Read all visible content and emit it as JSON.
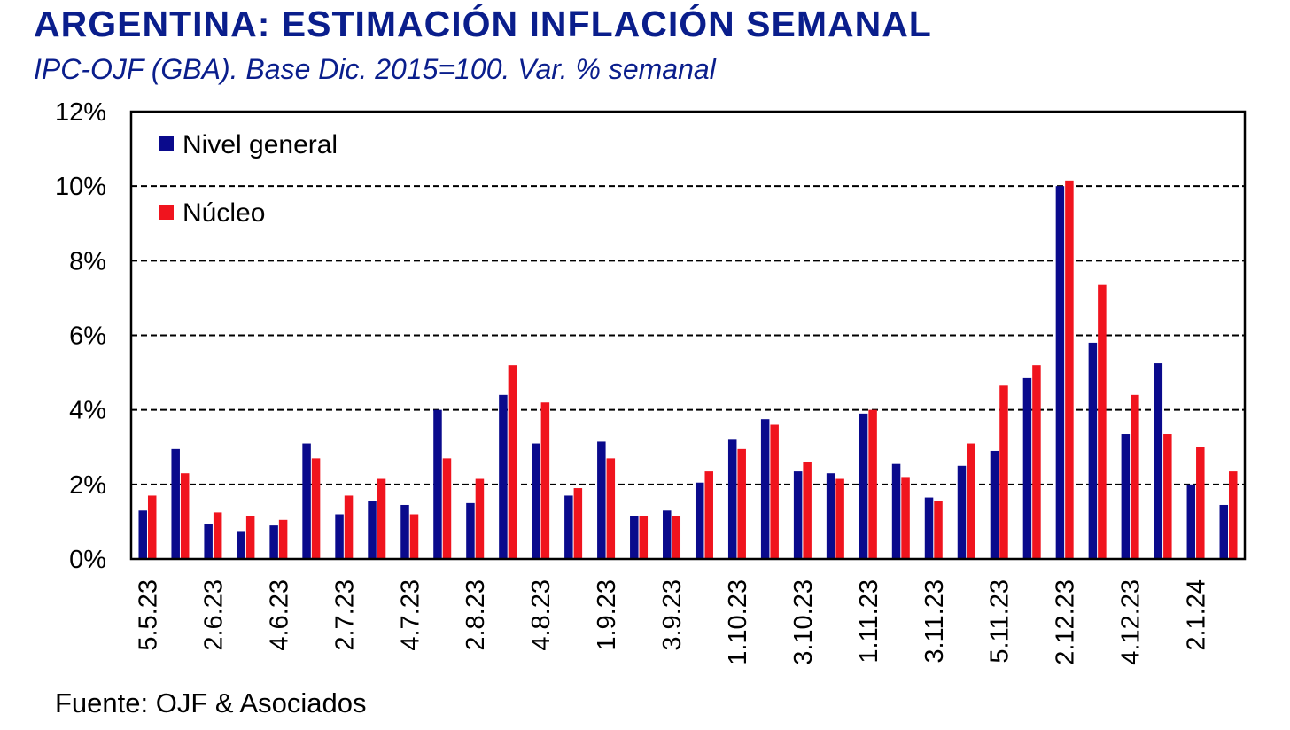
{
  "title": "ARGENTINA: ESTIMACIÓN INFLACIÓN SEMANAL",
  "subtitle": "IPC-OJF (GBA). Base Dic. 2015=100.  Var. % semanal",
  "source": "Fuente: OJF & Asociados",
  "chart_data": {
    "type": "bar",
    "title": "ARGENTINA: ESTIMACIÓN INFLACIÓN SEMANAL",
    "subtitle": "IPC-OJF (GBA). Base Dic. 2015=100.  Var. % semanal",
    "xlabel": "",
    "ylabel": "",
    "ylim": [
      0,
      12
    ],
    "yticks": [
      "0%",
      "2%",
      "4%",
      "6%",
      "8%",
      "10%",
      "12%"
    ],
    "ytick_values": [
      0,
      2,
      4,
      6,
      8,
      10,
      12
    ],
    "grid": "horizontal dashed",
    "legend_position": "top-left",
    "xtick_labels": [
      "5.5.23",
      "2.6.23",
      "4.6.23",
      "2.7.23",
      "4.7.23",
      "2.8.23",
      "4.8.23",
      "1.9.23",
      "3.9.23",
      "1.10.23",
      "3.10.23",
      "1.11.23",
      "3.11.23",
      "5.11.23",
      "2.12.23",
      "4.12.23",
      "2.1.24"
    ],
    "xtick_indices": [
      0,
      2,
      4,
      6,
      8,
      10,
      12,
      14,
      16,
      18,
      20,
      22,
      24,
      26,
      28,
      30,
      32
    ],
    "series": [
      {
        "name": "Nivel general",
        "color": "#0a0a8c",
        "values": [
          1.3,
          2.95,
          0.95,
          0.75,
          0.9,
          3.1,
          1.2,
          1.55,
          1.45,
          4.0,
          1.5,
          4.4,
          3.1,
          1.7,
          3.15,
          1.15,
          1.3,
          2.05,
          3.2,
          3.75,
          2.35,
          2.3,
          3.9,
          2.55,
          1.65,
          2.5,
          2.9,
          4.85,
          10.0,
          5.8,
          3.35,
          5.25,
          2.0,
          1.45
        ]
      },
      {
        "name": "Núcleo",
        "color": "#f0141e",
        "values": [
          1.7,
          2.3,
          1.25,
          1.15,
          1.05,
          2.7,
          1.7,
          2.15,
          1.2,
          2.7,
          2.15,
          5.2,
          4.2,
          1.9,
          2.7,
          1.15,
          1.15,
          2.35,
          2.95,
          3.6,
          2.6,
          2.15,
          4.0,
          2.2,
          1.55,
          3.1,
          4.65,
          5.2,
          10.15,
          7.35,
          4.4,
          3.35,
          3.0,
          2.35
        ]
      }
    ]
  }
}
